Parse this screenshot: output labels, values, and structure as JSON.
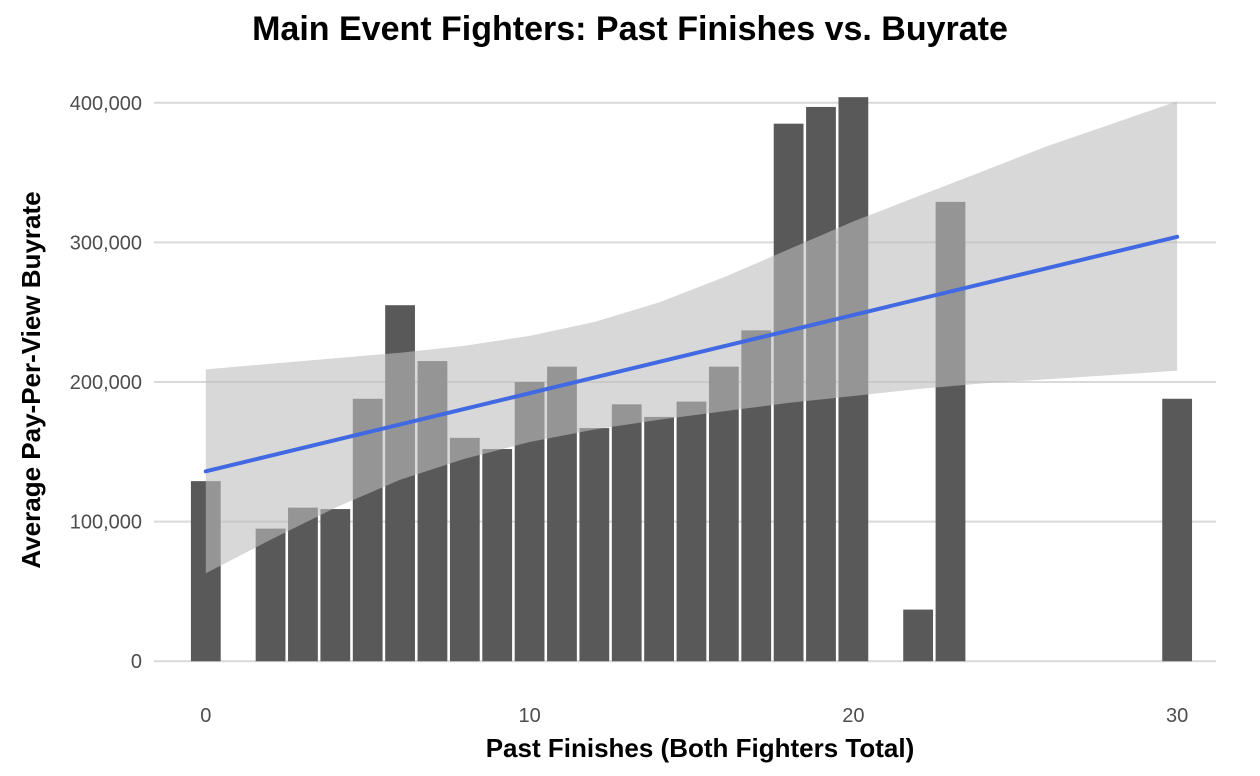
{
  "chart_data": {
    "type": "bar",
    "title": "Main Event Fighters: Past Finishes vs. Buyrate",
    "xlabel": "Past Finishes (Both Fighters Total)",
    "ylabel": "Average Pay-Per-View Buyrate",
    "xlim": [
      -1.6,
      31.2
    ],
    "ylim": [
      -12000,
      412000
    ],
    "x_ticks": [
      0,
      10,
      20,
      30
    ],
    "x_tick_labels": [
      "0",
      "10",
      "20",
      "30"
    ],
    "y_ticks": [
      0,
      100000,
      200000,
      300000,
      400000
    ],
    "y_tick_labels": [
      "0",
      "100,000",
      "200,000",
      "300,000",
      "400,000"
    ],
    "grid": "horizontal",
    "series": [
      {
        "type": "bar",
        "x": [
          0,
          2,
          3,
          4,
          5,
          6,
          7,
          8,
          9,
          10,
          11,
          12,
          13,
          14,
          15,
          16,
          17,
          18,
          19,
          20,
          22,
          23,
          30
        ],
        "values": [
          129000,
          95000,
          110000,
          109000,
          188000,
          255000,
          215000,
          160000,
          152000,
          200000,
          211000,
          167000,
          184000,
          175000,
          186000,
          211000,
          237000,
          385000,
          397000,
          404000,
          37000,
          329000,
          188000
        ],
        "color": "#595959"
      },
      {
        "type": "line",
        "x": [
          0,
          30
        ],
        "values": [
          136000,
          304000
        ],
        "color": "#4169e1"
      },
      {
        "type": "area",
        "x": [
          0,
          2,
          4,
          6,
          8,
          10,
          12,
          14,
          16,
          18,
          20,
          22,
          24,
          26,
          28,
          30
        ],
        "lower": [
          63000,
          87000,
          110000,
          130000,
          145000,
          157000,
          166000,
          173000,
          179000,
          185000,
          190000,
          195000,
          199000,
          202000,
          205000,
          208000
        ],
        "upper": [
          209000,
          213000,
          217000,
          221000,
          226000,
          233000,
          243000,
          257000,
          275000,
          295000,
          315000,
          333000,
          351000,
          369000,
          385000,
          401000
        ],
        "color": "#bebebe"
      }
    ]
  }
}
